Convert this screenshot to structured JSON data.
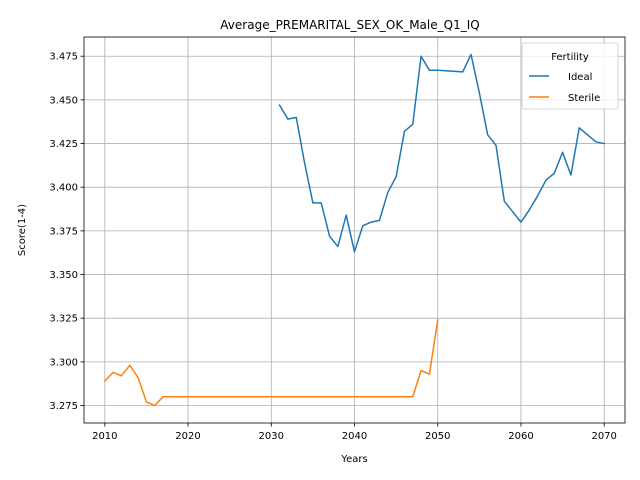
{
  "chart_data": {
    "type": "line",
    "title": "Average_PREMARITAL_SEX_OK_Male_Q1_IQ",
    "xlabel": "Years",
    "ylabel": "Score(1-4)",
    "xlim": [
      2007.5,
      2072.5
    ],
    "ylim": [
      3.265,
      3.486
    ],
    "xticks": [
      2010,
      2020,
      2030,
      2040,
      2050,
      2060,
      2070
    ],
    "yticks": [
      3.275,
      3.3,
      3.325,
      3.35,
      3.375,
      3.4,
      3.425,
      3.45,
      3.475
    ],
    "ytick_labels": [
      "3.275",
      "3.300",
      "3.325",
      "3.350",
      "3.375",
      "3.400",
      "3.425",
      "3.450",
      "3.475"
    ],
    "grid": true,
    "legend": {
      "title": "Fertility",
      "placement": "top-right"
    },
    "series": [
      {
        "name": "Ideal",
        "color": "#1f77b4",
        "x": [
          2031,
          2032,
          2033,
          2034,
          2035,
          2036,
          2037,
          2038,
          2039,
          2040,
          2041,
          2042,
          2043,
          2044,
          2045,
          2046,
          2047,
          2048,
          2049,
          2050,
          2053,
          2054,
          2055,
          2056,
          2057,
          2058,
          2059,
          2060,
          2061,
          2062,
          2063,
          2064,
          2065,
          2066,
          2067,
          2068,
          2069,
          2070
        ],
        "y": [
          3.447,
          3.439,
          3.44,
          3.414,
          3.391,
          3.391,
          3.372,
          3.366,
          3.384,
          3.363,
          3.378,
          3.38,
          3.381,
          3.397,
          3.406,
          3.432,
          3.436,
          3.475,
          3.467,
          3.467,
          3.466,
          3.476,
          3.454,
          3.43,
          3.424,
          3.392,
          3.386,
          3.38,
          3.387,
          3.395,
          3.404,
          3.408,
          3.42,
          3.407,
          3.434,
          3.43,
          3.426,
          3.425
        ]
      },
      {
        "name": "Sterile",
        "color": "#ff7f0e",
        "x": [
          2010,
          2011,
          2012,
          2013,
          2014,
          2015,
          2016,
          2017,
          2018,
          2019,
          2020,
          2021,
          2022,
          2023,
          2024,
          2025,
          2026,
          2027,
          2028,
          2029,
          2030,
          2031,
          2032,
          2033,
          2034,
          2035,
          2036,
          2037,
          2038,
          2039,
          2040,
          2041,
          2042,
          2043,
          2044,
          2045,
          2046,
          2047,
          2048,
          2049,
          2050
        ],
        "y": [
          3.289,
          3.294,
          3.292,
          3.298,
          3.291,
          3.277,
          3.275,
          3.28,
          3.28,
          3.28,
          3.28,
          3.28,
          3.28,
          3.28,
          3.28,
          3.28,
          3.28,
          3.28,
          3.28,
          3.28,
          3.28,
          3.28,
          3.28,
          3.28,
          3.28,
          3.28,
          3.28,
          3.28,
          3.28,
          3.28,
          3.28,
          3.28,
          3.28,
          3.28,
          3.28,
          3.28,
          3.28,
          3.28,
          3.295,
          3.293,
          3.324
        ]
      }
    ]
  }
}
